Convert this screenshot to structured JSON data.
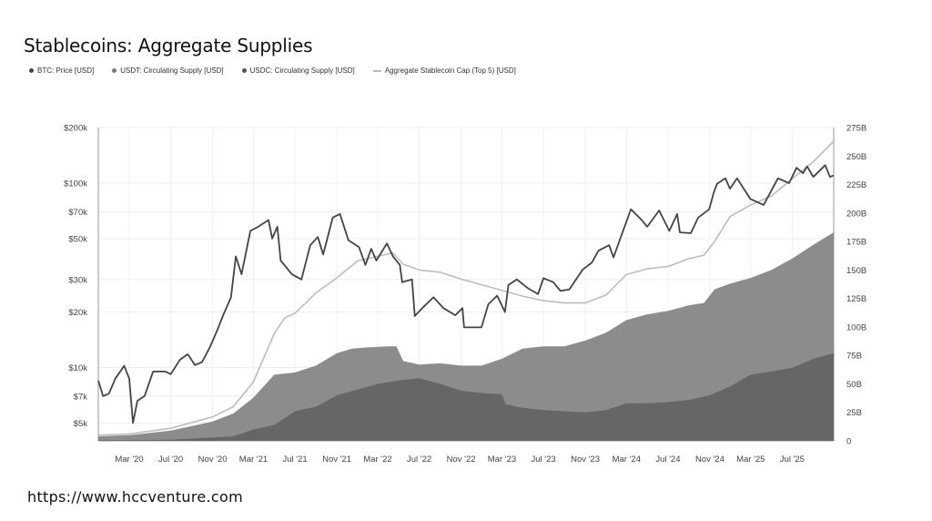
{
  "page": {
    "title": "Stablecoins: Aggregate Supplies",
    "footer_url": "https://www.hccventure.com"
  },
  "legend": [
    {
      "label": "BTC: Price [USD]",
      "color": "#444444",
      "marker": "dot"
    },
    {
      "label": "USDT: Circulating Supply [USD]",
      "color": "#7a7a7a",
      "marker": "dot"
    },
    {
      "label": "USDC: Circulating Supply [USD]",
      "color": "#555555",
      "marker": "dot"
    },
    {
      "label": "Aggregate Stablecoin Cap (Top 5) [USD]",
      "color": "#bbbbbb",
      "marker": "line"
    }
  ],
  "chart_data": {
    "type": "line",
    "title": "Stablecoins: Aggregate Supplies",
    "x_range": [
      "2019-12-01",
      "2025-10-31"
    ],
    "x_ticks": [
      {
        "label": "Mar '20",
        "date": "2020-03-01"
      },
      {
        "label": "Jul '20",
        "date": "2020-07-01"
      },
      {
        "label": "Nov '20",
        "date": "2020-11-01"
      },
      {
        "label": "Mar '21",
        "date": "2021-03-01"
      },
      {
        "label": "Jul '21",
        "date": "2021-07-01"
      },
      {
        "label": "Nov '21",
        "date": "2021-11-01"
      },
      {
        "label": "Mar '22",
        "date": "2022-03-01"
      },
      {
        "label": "Jul '22",
        "date": "2022-07-01"
      },
      {
        "label": "Nov '22",
        "date": "2022-11-01"
      },
      {
        "label": "Mar '23",
        "date": "2023-03-01"
      },
      {
        "label": "Jul '23",
        "date": "2023-07-01"
      },
      {
        "label": "Nov '23",
        "date": "2023-11-01"
      },
      {
        "label": "Mar '24",
        "date": "2024-03-01"
      },
      {
        "label": "Jul '24",
        "date": "2024-07-01"
      },
      {
        "label": "Nov '24",
        "date": "2024-11-01"
      },
      {
        "label": "Mar '25",
        "date": "2025-03-01"
      },
      {
        "label": "Jul '25",
        "date": "2025-07-01"
      }
    ],
    "y_left": {
      "scale": "log",
      "range": [
        4000,
        200000
      ],
      "ticks": [
        {
          "label": "$200k",
          "value": 200000
        },
        {
          "label": "$100k",
          "value": 100000
        },
        {
          "label": "$70k",
          "value": 70000
        },
        {
          "label": "$50k",
          "value": 50000
        },
        {
          "label": "$30k",
          "value": 30000
        },
        {
          "label": "$20k",
          "value": 20000
        },
        {
          "label": "$10k",
          "value": 10000
        },
        {
          "label": "$7k",
          "value": 7000
        },
        {
          "label": "$5k",
          "value": 5000
        }
      ]
    },
    "y_right": {
      "scale": "linear",
      "range": [
        0,
        275
      ],
      "unit": "B",
      "ticks": [
        {
          "label": "275B",
          "value": 275
        },
        {
          "label": "250B",
          "value": 250
        },
        {
          "label": "225B",
          "value": 225
        },
        {
          "label": "200B",
          "value": 200
        },
        {
          "label": "175B",
          "value": 175
        },
        {
          "label": "150B",
          "value": 150
        },
        {
          "label": "125B",
          "value": 125
        },
        {
          "label": "100B",
          "value": 100
        },
        {
          "label": "75B",
          "value": 75
        },
        {
          "label": "50B",
          "value": 50
        },
        {
          "label": "25B",
          "value": 25
        },
        {
          "label": "0",
          "value": 0
        }
      ]
    },
    "series": [
      {
        "name": "USDT: Circulating Supply [USD]",
        "axis": "right",
        "render": "area",
        "color": "#8c8c8c",
        "points": [
          [
            "2019-12-01",
            4
          ],
          [
            "2020-03-01",
            5
          ],
          [
            "2020-07-01",
            9
          ],
          [
            "2020-11-01",
            17
          ],
          [
            "2021-01-01",
            24
          ],
          [
            "2021-03-01",
            38
          ],
          [
            "2021-05-01",
            58
          ],
          [
            "2021-07-01",
            60
          ],
          [
            "2021-09-01",
            66
          ],
          [
            "2021-11-01",
            77
          ],
          [
            "2021-12-15",
            81
          ],
          [
            "2022-02-01",
            82
          ],
          [
            "2022-04-01",
            83
          ],
          [
            "2022-04-25",
            83
          ],
          [
            "2022-05-15",
            70
          ],
          [
            "2022-07-01",
            67
          ],
          [
            "2022-09-01",
            68
          ],
          [
            "2022-11-01",
            66
          ],
          [
            "2023-01-01",
            66
          ],
          [
            "2023-03-01",
            72
          ],
          [
            "2023-05-01",
            81
          ],
          [
            "2023-07-01",
            83
          ],
          [
            "2023-09-01",
            83
          ],
          [
            "2023-11-01",
            88
          ],
          [
            "2024-01-01",
            95
          ],
          [
            "2024-03-01",
            106
          ],
          [
            "2024-05-01",
            111
          ],
          [
            "2024-07-01",
            114
          ],
          [
            "2024-09-01",
            119
          ],
          [
            "2024-10-15",
            121
          ],
          [
            "2024-11-15",
            133
          ],
          [
            "2024-12-31",
            138
          ],
          [
            "2025-03-01",
            143
          ],
          [
            "2025-05-01",
            150
          ],
          [
            "2025-07-01",
            160
          ],
          [
            "2025-09-01",
            172
          ],
          [
            "2025-10-31",
            183
          ]
        ]
      },
      {
        "name": "USDC: Circulating Supply [USD]",
        "axis": "right",
        "render": "area",
        "color": "#666666",
        "points": [
          [
            "2019-12-01",
            0.5
          ],
          [
            "2020-03-01",
            0.6
          ],
          [
            "2020-07-01",
            1
          ],
          [
            "2020-11-01",
            3
          ],
          [
            "2021-01-01",
            4
          ],
          [
            "2021-03-01",
            10
          ],
          [
            "2021-05-01",
            14
          ],
          [
            "2021-07-01",
            26
          ],
          [
            "2021-09-01",
            30
          ],
          [
            "2021-11-01",
            40
          ],
          [
            "2022-01-01",
            45
          ],
          [
            "2022-03-01",
            50
          ],
          [
            "2022-05-01",
            53
          ],
          [
            "2022-07-01",
            55
          ],
          [
            "2022-09-01",
            50
          ],
          [
            "2022-11-01",
            44
          ],
          [
            "2023-01-01",
            42
          ],
          [
            "2023-03-01",
            41
          ],
          [
            "2023-03-12",
            32
          ],
          [
            "2023-05-01",
            29
          ],
          [
            "2023-07-01",
            27
          ],
          [
            "2023-09-01",
            26
          ],
          [
            "2023-11-01",
            25
          ],
          [
            "2024-01-01",
            27
          ],
          [
            "2024-03-01",
            33
          ],
          [
            "2024-05-01",
            33
          ],
          [
            "2024-07-01",
            34
          ],
          [
            "2024-09-01",
            36
          ],
          [
            "2024-11-01",
            40
          ],
          [
            "2025-01-01",
            48
          ],
          [
            "2025-03-01",
            58
          ],
          [
            "2025-05-01",
            61
          ],
          [
            "2025-07-01",
            64
          ],
          [
            "2025-09-01",
            72
          ],
          [
            "2025-10-31",
            77
          ]
        ]
      },
      {
        "name": "Aggregate Stablecoin Cap (Top 5) [USD]",
        "axis": "right",
        "render": "line",
        "color": "#bdbdbd",
        "points": [
          [
            "2019-12-01",
            5
          ],
          [
            "2020-03-01",
            6
          ],
          [
            "2020-07-01",
            11
          ],
          [
            "2020-11-01",
            21
          ],
          [
            "2021-01-01",
            30
          ],
          [
            "2021-03-01",
            52
          ],
          [
            "2021-05-01",
            94
          ],
          [
            "2021-06-01",
            108
          ],
          [
            "2021-07-01",
            112
          ],
          [
            "2021-09-01",
            130
          ],
          [
            "2021-11-01",
            143
          ],
          [
            "2022-01-01",
            158
          ],
          [
            "2022-03-01",
            162
          ],
          [
            "2022-04-15",
            165
          ],
          [
            "2022-05-15",
            155
          ],
          [
            "2022-07-01",
            150
          ],
          [
            "2022-09-01",
            148
          ],
          [
            "2022-11-01",
            142
          ],
          [
            "2023-01-01",
            137
          ],
          [
            "2023-03-01",
            132
          ],
          [
            "2023-05-01",
            127
          ],
          [
            "2023-07-01",
            123
          ],
          [
            "2023-09-01",
            121
          ],
          [
            "2023-11-01",
            121
          ],
          [
            "2024-01-01",
            128
          ],
          [
            "2024-03-01",
            146
          ],
          [
            "2024-05-01",
            151
          ],
          [
            "2024-07-01",
            153
          ],
          [
            "2024-09-01",
            160
          ],
          [
            "2024-10-15",
            163
          ],
          [
            "2024-11-15",
            175
          ],
          [
            "2024-12-31",
            197
          ],
          [
            "2025-03-01",
            207
          ],
          [
            "2025-05-01",
            215
          ],
          [
            "2025-07-01",
            230
          ],
          [
            "2025-09-01",
            245
          ],
          [
            "2025-10-31",
            263
          ]
        ]
      },
      {
        "name": "BTC: Price [USD]",
        "axis": "left",
        "render": "line",
        "color": "#444444",
        "points": [
          [
            "2019-12-01",
            8500
          ],
          [
            "2019-12-15",
            7000
          ],
          [
            "2020-01-01",
            7200
          ],
          [
            "2020-01-20",
            8700
          ],
          [
            "2020-02-15",
            10200
          ],
          [
            "2020-03-01",
            8700
          ],
          [
            "2020-03-12",
            5000
          ],
          [
            "2020-03-25",
            6600
          ],
          [
            "2020-04-15",
            7000
          ],
          [
            "2020-05-10",
            9500
          ],
          [
            "2020-06-15",
            9500
          ],
          [
            "2020-07-01",
            9200
          ],
          [
            "2020-07-28",
            11000
          ],
          [
            "2020-08-20",
            11800
          ],
          [
            "2020-09-10",
            10300
          ],
          [
            "2020-10-01",
            10700
          ],
          [
            "2020-10-25",
            13000
          ],
          [
            "2020-11-15",
            16000
          ],
          [
            "2020-12-01",
            19000
          ],
          [
            "2020-12-25",
            24000
          ],
          [
            "2021-01-08",
            40000
          ],
          [
            "2021-01-25",
            32000
          ],
          [
            "2021-02-20",
            55000
          ],
          [
            "2021-03-15",
            58000
          ],
          [
            "2021-04-14",
            63000
          ],
          [
            "2021-04-25",
            50000
          ],
          [
            "2021-05-10",
            58000
          ],
          [
            "2021-05-20",
            38000
          ],
          [
            "2021-06-22",
            32000
          ],
          [
            "2021-07-20",
            30000
          ],
          [
            "2021-08-15",
            46000
          ],
          [
            "2021-09-06",
            51000
          ],
          [
            "2021-09-22",
            41000
          ],
          [
            "2021-10-20",
            65000
          ],
          [
            "2021-11-10",
            68000
          ],
          [
            "2021-12-05",
            49000
          ],
          [
            "2022-01-05",
            45000
          ],
          [
            "2022-01-24",
            36000
          ],
          [
            "2022-02-10",
            44000
          ],
          [
            "2022-02-25",
            38000
          ],
          [
            "2022-03-28",
            47000
          ],
          [
            "2022-04-15",
            40000
          ],
          [
            "2022-05-05",
            36000
          ],
          [
            "2022-05-12",
            29000
          ],
          [
            "2022-06-10",
            30000
          ],
          [
            "2022-06-18",
            19000
          ],
          [
            "2022-07-10",
            21000
          ],
          [
            "2022-08-12",
            24000
          ],
          [
            "2022-09-10",
            21000
          ],
          [
            "2022-10-15",
            19200
          ],
          [
            "2022-11-05",
            21000
          ],
          [
            "2022-11-10",
            16500
          ],
          [
            "2022-12-31",
            16500
          ],
          [
            "2023-01-20",
            22000
          ],
          [
            "2023-02-15",
            24500
          ],
          [
            "2023-03-10",
            20000
          ],
          [
            "2023-03-20",
            28000
          ],
          [
            "2023-04-14",
            30000
          ],
          [
            "2023-05-15",
            27000
          ],
          [
            "2023-06-15",
            25000
          ],
          [
            "2023-07-01",
            30500
          ],
          [
            "2023-07-30",
            29000
          ],
          [
            "2023-08-20",
            26000
          ],
          [
            "2023-09-15",
            26500
          ],
          [
            "2023-10-25",
            34000
          ],
          [
            "2023-11-20",
            37000
          ],
          [
            "2023-12-10",
            43000
          ],
          [
            "2024-01-10",
            46000
          ],
          [
            "2024-01-23",
            39500
          ],
          [
            "2024-02-15",
            52000
          ],
          [
            "2024-03-14",
            72000
          ],
          [
            "2024-04-15",
            63000
          ],
          [
            "2024-05-01",
            58000
          ],
          [
            "2024-06-05",
            71000
          ],
          [
            "2024-07-05",
            55000
          ],
          [
            "2024-07-28",
            68000
          ],
          [
            "2024-08-05",
            54000
          ],
          [
            "2024-09-06",
            53500
          ],
          [
            "2024-09-28",
            65000
          ],
          [
            "2024-10-30",
            72000
          ],
          [
            "2024-11-12",
            88000
          ],
          [
            "2024-11-22",
            99000
          ],
          [
            "2024-12-17",
            106000
          ],
          [
            "2024-12-30",
            93000
          ],
          [
            "2025-01-20",
            106000
          ],
          [
            "2025-02-28",
            82000
          ],
          [
            "2025-04-08",
            76000
          ],
          [
            "2025-05-20",
            106000
          ],
          [
            "2025-06-22",
            100000
          ],
          [
            "2025-07-14",
            121000
          ],
          [
            "2025-08-02",
            113000
          ],
          [
            "2025-08-14",
            123000
          ],
          [
            "2025-09-01",
            108000
          ],
          [
            "2025-10-06",
            125000
          ],
          [
            "2025-10-20",
            108000
          ],
          [
            "2025-10-31",
            110000
          ]
        ]
      }
    ]
  }
}
